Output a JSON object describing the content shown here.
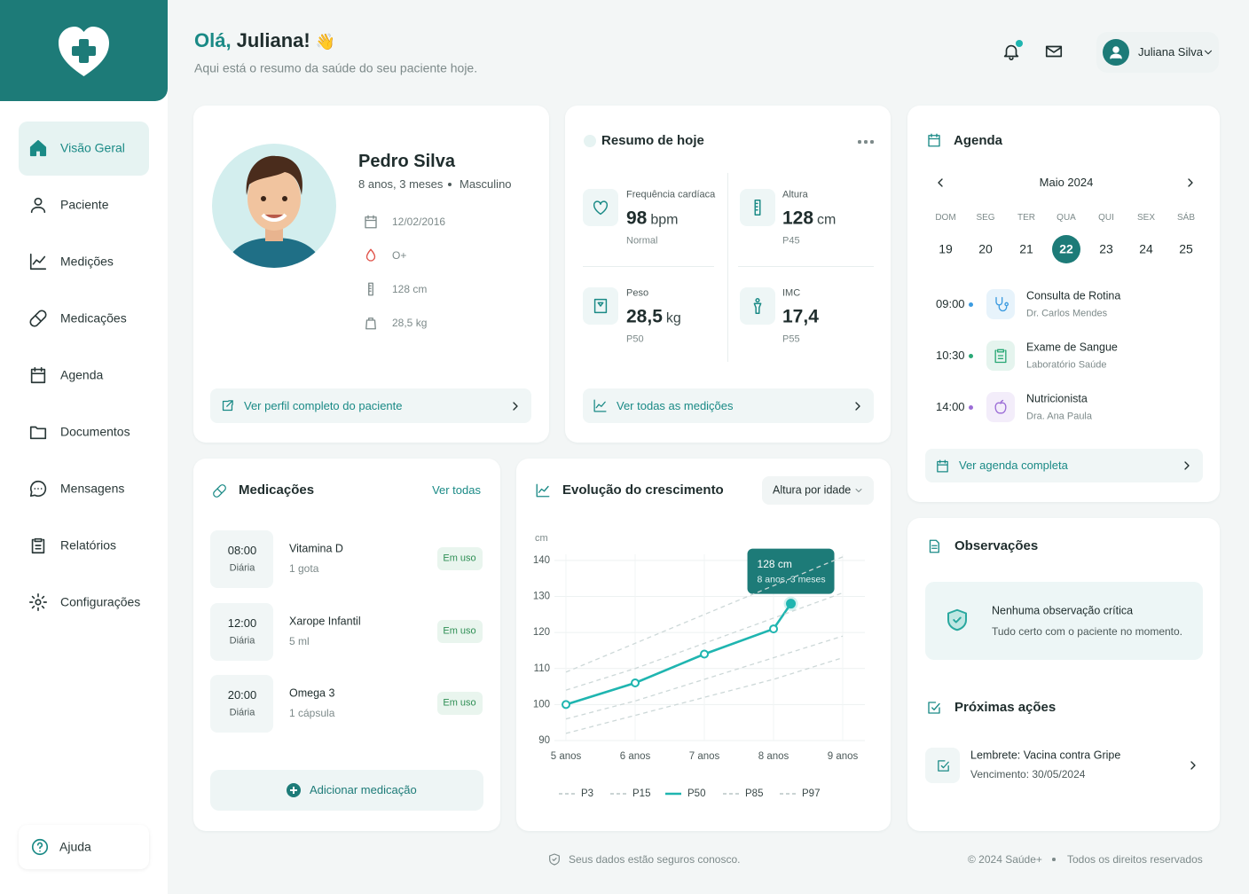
{
  "header": {
    "greeting": "Olá,",
    "name": "Juliana!",
    "emoji": "👋",
    "subtitle": "Aqui está o resumo da saúde do seu paciente hoje.",
    "user": "Juliana Silva"
  },
  "sidebar": {
    "nav": [
      "Visão Geral",
      "Paciente",
      "Medições",
      "Medicações",
      "Agenda",
      "Documentos",
      "Mensagens",
      "Relatórios",
      "Configurações"
    ],
    "active": 0,
    "help": "Ajuda"
  },
  "patient": {
    "name": "Pedro Silva",
    "age": "8 anos, 3 meses",
    "sex": "Masculino",
    "details": [
      "12/02/2016",
      "O+",
      "128 cm",
      "28,5 kg"
    ],
    "link": "Ver perfil completo do paciente"
  },
  "summary": {
    "title": "Resumo de hoje",
    "metrics": [
      {
        "label": "Frequência cardíaca",
        "value": "98",
        "unit": "bpm",
        "note": "Normal"
      },
      {
        "label": "Altura",
        "value": "128",
        "unit": "cm",
        "note": "P45"
      },
      {
        "label": "Peso",
        "value": "28,5",
        "unit": "kg",
        "note": "P50"
      },
      {
        "label": "IMC",
        "value": "17,4",
        "note": "P55"
      }
    ],
    "link": "Ver todas as medições"
  },
  "agenda": {
    "title": "Agenda",
    "month": "Maio 2024",
    "weekdays": [
      "DOM",
      "SEG",
      "TER",
      "QUA",
      "QUI",
      "SEX",
      "SÁB"
    ],
    "days": [
      19,
      20,
      21,
      22,
      23,
      24,
      25
    ],
    "selected": 3,
    "events": [
      {
        "time": "09:00",
        "title": "Consulta de Rotina",
        "detail": "Dr. Carlos Mendes",
        "color": "#3b9be0"
      },
      {
        "time": "10:30",
        "title": "Exame de Sangue",
        "detail": "Laboratório Saúde",
        "color": "#2aa876"
      },
      {
        "time": "14:00",
        "title": "Nutricionista",
        "detail": "Dra. Ana Paula",
        "color": "#9b6cd6"
      }
    ],
    "link": "Ver agenda completa"
  },
  "medications": {
    "title": "Medicações",
    "see_all": "Ver todas",
    "items": [
      {
        "time": "08:00",
        "frequency": "Diária",
        "name": "Vitamina D",
        "dose": "1 gota",
        "status": "Em uso"
      },
      {
        "time": "12:00",
        "frequency": "Diária",
        "name": "Xarope Infantil",
        "dose": "5 ml",
        "status": "Em uso"
      },
      {
        "time": "20:00",
        "frequency": "Diária",
        "name": "Omega 3",
        "dose": "1 cápsula",
        "status": "Em uso"
      }
    ],
    "add": "Adicionar medicação"
  },
  "chart_data": {
    "type": "line",
    "title": "Evolução do crescimento",
    "selector": "Altura por idade",
    "y_unit": "cm",
    "xlim": [
      4.833,
      9.32
    ],
    "ylim": [
      90,
      141.7
    ],
    "grid": true,
    "xticks": [
      {
        "value": 5,
        "label": "5 anos"
      },
      {
        "value": 6,
        "label": "6 anos"
      },
      {
        "value": 7,
        "label": "7 anos"
      },
      {
        "value": 8,
        "label": "8 anos"
      },
      {
        "value": 9,
        "label": "9 anos"
      }
    ],
    "yticks": [
      90,
      100,
      110,
      120,
      130,
      140
    ],
    "series": [
      {
        "name": "P3",
        "color": "#cdd8d8",
        "dashed": true,
        "x": [
          5,
          6,
          7,
          8,
          9
        ],
        "values": [
          92,
          97,
          102,
          107,
          113
        ]
      },
      {
        "name": "P15",
        "color": "#cdd8d8",
        "dashed": true,
        "x": [
          5,
          6,
          7,
          8,
          9
        ],
        "values": [
          96,
          101,
          107,
          113,
          119
        ]
      },
      {
        "name": "P50",
        "color": "#1fb5b0",
        "dashed": false,
        "x": [
          5,
          6,
          7,
          8,
          8.25
        ],
        "values": [
          100,
          106,
          114,
          121,
          128
        ],
        "value_labels": [
          null,
          null,
          null,
          null,
          "128 cm"
        ]
      },
      {
        "name": "P85",
        "color": "#cdd8d8",
        "dashed": true,
        "x": [
          5,
          6,
          7,
          8,
          9
        ],
        "values": [
          104,
          110,
          117,
          124,
          131
        ]
      },
      {
        "name": "P97",
        "color": "#cdd8d8",
        "dashed": true,
        "x": [
          5,
          6,
          7,
          8,
          9
        ],
        "values": [
          109,
          117,
          125,
          133,
          141
        ]
      }
    ],
    "tooltip_subtitle": "8 anos, 3 meses"
  },
  "observations": {
    "title": "Observações",
    "status_title": "Nenhuma observação crítica",
    "status_text": "Tudo certo com o paciente no momento.",
    "actions_title": "Próximas ações",
    "action": {
      "title": "Lembrete: Vacina contra Gripe",
      "due": "Vencimento: 30/05/2024"
    }
  },
  "footer": {
    "security": "Seus dados estão seguros conosco.",
    "copyright": "© 2024 Saúde+",
    "rights": "Todos os direitos reservados"
  }
}
